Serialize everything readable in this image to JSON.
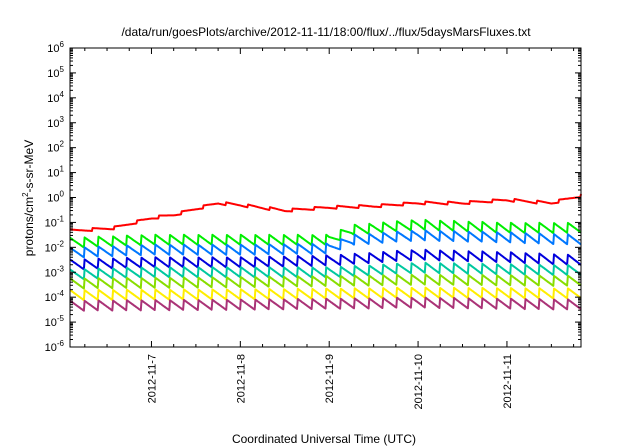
{
  "chart_data": {
    "type": "line",
    "title": "/data/run/goesPlots/archive/2012-11-11/18:00/flux/../flux/5daysMarsFluxes.txt",
    "xlabel": "Coordinated Universal Time (UTC)",
    "ylabel": {
      "base": "protons/cm",
      "sup": "2",
      "rest": "-s-sr-MeV"
    },
    "x_range": [
      "2012-11-06T02:00",
      "2012-11-11T20:00"
    ],
    "x_ticks": [
      "2012-11-7",
      "2012-11-8",
      "2012-11-9",
      "2012-11-10",
      "2012-11-11"
    ],
    "y_scale": "log",
    "y_range": [
      1e-06,
      1000000.0
    ],
    "y_ticks": [
      {
        "exp": "-6"
      },
      {
        "exp": "-5"
      },
      {
        "exp": "-4"
      },
      {
        "exp": "-3"
      },
      {
        "exp": "-2"
      },
      {
        "exp": "-1"
      },
      {
        "exp": "0"
      },
      {
        "exp": "1"
      },
      {
        "exp": "2"
      },
      {
        "exp": "3"
      },
      {
        "exp": "4"
      },
      {
        "exp": "5"
      },
      {
        "exp": "6"
      }
    ],
    "grid": false,
    "legend": "none",
    "series": [
      {
        "color": "#ff0000",
        "sawtooth_period_days": 0.25,
        "x": [
          "2012-11-06T02:00",
          "2012-11-06T14:00",
          "2012-11-07T00:00",
          "2012-11-07T06:00",
          "2012-11-07T12:00",
          "2012-11-07T18:00",
          "2012-11-08T00:00",
          "2012-11-08T12:00",
          "2012-11-09T00:00",
          "2012-11-09T12:00",
          "2012-11-10T00:00",
          "2012-11-10T12:00",
          "2012-11-11T00:00",
          "2012-11-11T12:00",
          "2012-11-11T20:00"
        ],
        "y": [
          0.045,
          0.06,
          0.15,
          0.2,
          0.35,
          0.6,
          0.5,
          0.3,
          0.4,
          0.45,
          0.6,
          0.6,
          0.8,
          0.6,
          1.2
        ]
      },
      {
        "color": "#00ee00",
        "sawtooth_period_days": 0.16,
        "x": [
          "2012-11-06T02:00",
          "2012-11-07T00:00",
          "2012-11-08T00:00",
          "2012-11-09T00:00",
          "2012-11-09T06:00",
          "2012-11-10T00:00",
          "2012-11-11T00:00",
          "2012-11-11T20:00"
        ],
        "y": [
          0.015,
          0.02,
          0.02,
          0.02,
          0.05,
          0.08,
          0.06,
          0.06
        ]
      },
      {
        "color": "#0077ff",
        "sawtooth_period_days": 0.16,
        "x": [
          "2012-11-06T02:00",
          "2012-11-07T00:00",
          "2012-11-08T00:00",
          "2012-11-09T00:00",
          "2012-11-09T06:00",
          "2012-11-10T00:00",
          "2012-11-11T00:00",
          "2012-11-11T20:00"
        ],
        "y": [
          0.006,
          0.008,
          0.008,
          0.009,
          0.02,
          0.03,
          0.025,
          0.02
        ]
      },
      {
        "color": "#0000dd",
        "sawtooth_period_days": 0.16,
        "x": [
          "2012-11-06T02:00",
          "2012-11-07T00:00",
          "2012-11-08T00:00",
          "2012-11-09T00:00",
          "2012-11-10T00:00",
          "2012-11-11T00:00",
          "2012-11-11T20:00"
        ],
        "y": [
          0.002,
          0.0025,
          0.0025,
          0.003,
          0.005,
          0.004,
          0.003
        ]
      },
      {
        "color": "#00c8a0",
        "sawtooth_period_days": 0.16,
        "x": [
          "2012-11-06T02:00",
          "2012-11-07T00:00",
          "2012-11-08T00:00",
          "2012-11-09T00:00",
          "2012-11-10T00:00",
          "2012-11-11T00:00",
          "2012-11-11T20:00"
        ],
        "y": [
          0.0008,
          0.001,
          0.001,
          0.001,
          0.0015,
          0.0013,
          0.0012
        ]
      },
      {
        "color": "#88dd00",
        "sawtooth_period_days": 0.16,
        "x": [
          "2012-11-06T02:00",
          "2012-11-08T00:00",
          "2012-11-10T00:00",
          "2012-11-11T20:00"
        ],
        "y": [
          0.00035,
          0.0004,
          0.0005,
          0.00045
        ]
      },
      {
        "color": "#ffee00",
        "sawtooth_period_days": 0.16,
        "x": [
          "2012-11-06T02:00",
          "2012-11-08T00:00",
          "2012-11-10T00:00",
          "2012-11-11T20:00"
        ],
        "y": [
          0.00012,
          0.00013,
          0.00015,
          0.00014
        ]
      },
      {
        "color": "#aa3377",
        "sawtooth_period_days": 0.16,
        "x": [
          "2012-11-06T02:00",
          "2012-11-08T00:00",
          "2012-11-10T00:00",
          "2012-11-11T20:00"
        ],
        "y": [
          4.5e-05,
          5e-05,
          6e-05,
          5e-05
        ]
      }
    ]
  }
}
